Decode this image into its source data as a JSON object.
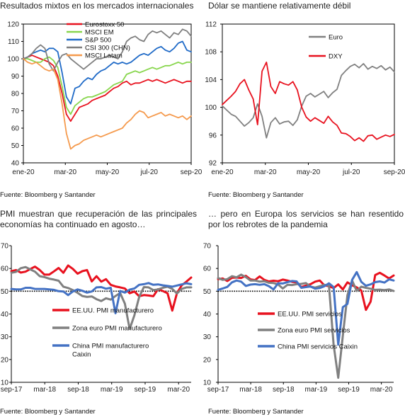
{
  "chart_data": [
    {
      "type": "line",
      "title": "Resultados mixtos en los mercados internacionales",
      "source": "Fuente: Bloomberg y Santander",
      "x_tick_labels": [
        "ene-20",
        "mar-20",
        "may-20",
        "jul-20",
        "sep-20"
      ],
      "ylim": [
        40,
        120
      ],
      "y_ticks": [
        "40",
        "50",
        "60",
        "70",
        "80",
        "90",
        "100",
        "110",
        "120"
      ],
      "legend_position": "top-center",
      "grid": false,
      "series": [
        {
          "name": "Eurostoxx 50",
          "color": "#e8121f",
          "values": [
            100,
            101,
            102,
            101,
            100,
            99,
            98,
            96,
            90,
            80,
            68,
            64,
            68,
            72,
            73,
            74,
            76,
            77,
            78,
            79,
            81,
            83,
            84,
            86,
            87,
            85,
            86,
            86,
            87,
            88,
            87,
            88,
            87,
            86,
            87,
            88,
            87,
            86,
            87,
            87
          ]
        },
        {
          "name": "MSCI EM",
          "color": "#88d64d",
          "values": [
            100,
            100,
            99,
            98,
            98,
            100,
            101,
            99,
            95,
            84,
            72,
            68,
            73,
            75,
            77,
            78,
            78,
            79,
            80,
            81,
            83,
            85,
            86,
            87,
            91,
            92,
            93,
            92,
            93,
            94,
            95,
            94,
            95,
            96,
            96,
            97,
            98,
            97,
            98,
            98
          ]
        },
        {
          "name": "S&P 500",
          "color": "#1f6ac7",
          "values": [
            100,
            101,
            103,
            104,
            105,
            104,
            106,
            106,
            104,
            92,
            78,
            74,
            83,
            84,
            87,
            89,
            88,
            91,
            93,
            94,
            96,
            98,
            97,
            98,
            97,
            98,
            100,
            102,
            103,
            102,
            104,
            106,
            107,
            105,
            104,
            106,
            109,
            110,
            105,
            104
          ]
        },
        {
          "name": "CSI 300 (CHN)",
          "color": "#7f7f7f",
          "values": [
            100,
            101,
            103,
            106,
            108,
            106,
            97,
            93,
            98,
            102,
            103,
            100,
            98,
            96,
            94,
            96,
            98,
            100,
            100,
            101,
            102,
            101,
            100,
            104,
            110,
            112,
            113,
            111,
            110,
            114,
            116,
            115,
            116,
            114,
            112,
            115,
            114,
            117,
            116,
            113
          ]
        },
        {
          "name": "MSCI Latam",
          "color": "#f59a4d",
          "values": [
            100,
            98,
            97,
            98,
            96,
            94,
            93,
            94,
            88,
            74,
            57,
            48,
            50,
            51,
            53,
            54,
            55,
            56,
            55,
            56,
            57,
            58,
            59,
            60,
            63,
            65,
            68,
            70,
            69,
            66,
            67,
            68,
            69,
            67,
            68,
            67,
            66,
            67,
            65,
            67
          ]
        }
      ]
    },
    {
      "type": "line",
      "title": "Dólar se mantiene relativamente débil",
      "source": "Fuente: Bloomberg y Santander",
      "x_tick_labels": [
        "ene-20",
        "mar-20",
        "may-20",
        "jul-20",
        "sep-20"
      ],
      "ylim": [
        92,
        112
      ],
      "y_ticks": [
        "92",
        "96",
        "100",
        "104",
        "108",
        "112"
      ],
      "legend_position": "top-right",
      "grid": false,
      "series": [
        {
          "name": "Euro",
          "color": "#808080",
          "values": [
            100.2,
            99.6,
            99.0,
            98.7,
            98.0,
            97.3,
            97.8,
            98.5,
            100.5,
            98.7,
            95.6,
            97.8,
            98.5,
            97.6,
            97.9,
            98.0,
            97.4,
            98.2,
            100.2,
            101.6,
            102.0,
            101.5,
            101.9,
            102.3,
            101.4,
            102.1,
            102.6,
            104.6,
            105.3,
            105.9,
            106.2,
            105.7,
            106.3,
            105.5,
            105.9,
            105.6,
            106.0,
            105.4,
            105.8,
            105.1
          ]
        },
        {
          "name": "DXY",
          "color": "#e8121f",
          "values": [
            100.4,
            101.0,
            101.6,
            102.3,
            103.4,
            104.0,
            102.5,
            101.2,
            97.5,
            105.2,
            106.5,
            103.0,
            102.0,
            103.7,
            103.4,
            103.2,
            103.7,
            102.5,
            100.0,
            98.6,
            98.0,
            98.5,
            98.1,
            97.7,
            98.7,
            97.9,
            97.4,
            96.3,
            96.2,
            95.8,
            95.2,
            95.6,
            95.1,
            95.9,
            96.0,
            95.4,
            95.7,
            96.0,
            95.8,
            96.1
          ]
        }
      ]
    },
    {
      "type": "line",
      "title": "PMI muestran que recuperación de las principales economías ha continuado en agosto…",
      "source": "Fuente: Bloomberg y Santander",
      "x_tick_labels": [
        "sep-17",
        "mar-18",
        "sep-18",
        "mar-19",
        "sep-19",
        "mar-20"
      ],
      "ylim": [
        10,
        70
      ],
      "y_ticks": [
        "10",
        "20",
        "30",
        "40",
        "50",
        "60",
        "70"
      ],
      "reference_line": 50,
      "legend_position": "center-left",
      "grid": false,
      "series": [
        {
          "name": "EE.UU. PMI manufacturero",
          "color": "#e8121f",
          "values": [
            58.8,
            59.3,
            58.2,
            58.6,
            59.7,
            60.8,
            59.3,
            57.3,
            57.3,
            58.7,
            60.2,
            58.1,
            61.3,
            59.8,
            57.7,
            58.8,
            59.3,
            54.3,
            56.6,
            54.2,
            55.3,
            52.8,
            52.1,
            51.7,
            51.2,
            49.1,
            49.9,
            47.8,
            48.3,
            48.1,
            47.8,
            50.9,
            50.1,
            49.1,
            41.5,
            49.1,
            52.6,
            54.2,
            56.0
          ]
        },
        {
          "name": "Zona euro PMI manufacturero",
          "color": "#808080",
          "values": [
            58.1,
            58.5,
            60.1,
            60.6,
            59.6,
            58.6,
            56.6,
            56.2,
            55.5,
            55.1,
            54.6,
            52.0,
            51.4,
            50.5,
            49.3,
            47.9,
            47.5,
            47.7,
            46.5,
            45.7,
            46.9,
            46.3,
            47.9,
            49.2,
            44.5,
            33.4,
            39.4,
            47.4,
            51.8,
            51.7,
            50.5,
            50.8,
            51.5,
            52.0,
            51.0,
            49.0,
            51.0,
            51.7,
            51.7
          ]
        },
        {
          "name": "China PMI manufacturero Caixin",
          "color": "#4472c4",
          "values": [
            51.0,
            50.8,
            50.8,
            51.5,
            51.5,
            51.0,
            51.0,
            51.0,
            50.8,
            50.6,
            50.0,
            49.9,
            48.3,
            49.9,
            50.8,
            50.2,
            49.4,
            49.9,
            51.7,
            51.8,
            51.1,
            51.5,
            40.3,
            50.1,
            49.4,
            50.7,
            51.2,
            52.8,
            53.1,
            53.6,
            52.8,
            53.0,
            52.6,
            52.3,
            52.0,
            52.5,
            53.0,
            53.5,
            53.1
          ]
        }
      ]
    },
    {
      "type": "line",
      "title": "… pero en Europa los servicios se han resentido por los rebrotes de la pandemia",
      "source": "Fuente: Bloomberg y Santander",
      "x_tick_labels": [
        "sep-17",
        "mar-18",
        "sep-18",
        "mar-19",
        "sep-19",
        "mar-20"
      ],
      "ylim": [
        10,
        70
      ],
      "y_ticks": [
        "10",
        "20",
        "30",
        "40",
        "50",
        "60",
        "70"
      ],
      "reference_line": 50,
      "legend_position": "center-left",
      "grid": false,
      "series": [
        {
          "name": "EE.UU. PMI servicios",
          "color": "#e8121f",
          "values": [
            55.3,
            55.6,
            54.5,
            55.9,
            56.0,
            55.8,
            56.8,
            55.2,
            54.9,
            56.5,
            55.0,
            54.3,
            54.6,
            54.4,
            55.1,
            54.7,
            54.1,
            53.9,
            51.8,
            52.5,
            53.1,
            54.2,
            54.7,
            52.6,
            52.2,
            51.4,
            53.0,
            50.8,
            53.9,
            52.6,
            51.7,
            50.3,
            41.8,
            45.4,
            57.1,
            58.1,
            56.9,
            55.6,
            56.9
          ]
        },
        {
          "name": "Zona euro PMI servicios",
          "color": "#808080",
          "values": [
            55.8,
            55.0,
            55.3,
            56.6,
            56.1,
            57.3,
            56.2,
            54.7,
            54.7,
            54.2,
            54.4,
            53.7,
            53.6,
            53.0,
            51.2,
            52.8,
            52.7,
            53.1,
            53.2,
            53.6,
            52.0,
            51.6,
            52.2,
            52.8,
            52.5,
            26.4,
            12.0,
            30.5,
            48.3,
            54.7,
            50.1,
            52.0,
            51.5,
            51.1,
            50.6,
            50.7,
            50.5,
            50.8,
            50.1
          ]
        },
        {
          "name": "China PMI servicios Caixin",
          "color": "#4472c4",
          "values": [
            50.6,
            51.2,
            51.9,
            53.9,
            54.7,
            54.2,
            52.3,
            52.9,
            53.1,
            52.8,
            53.1,
            52.2,
            50.8,
            53.5,
            53.4,
            54.0,
            54.5,
            54.3,
            51.5,
            51.8,
            52.1,
            51.1,
            51.4,
            52.2,
            53.5,
            51.8,
            26.5,
            43.0,
            44.4,
            55.0,
            58.4,
            54.1,
            52.4,
            53.0,
            54.0,
            54.3,
            53.8,
            55.2,
            54.7
          ]
        }
      ]
    }
  ]
}
